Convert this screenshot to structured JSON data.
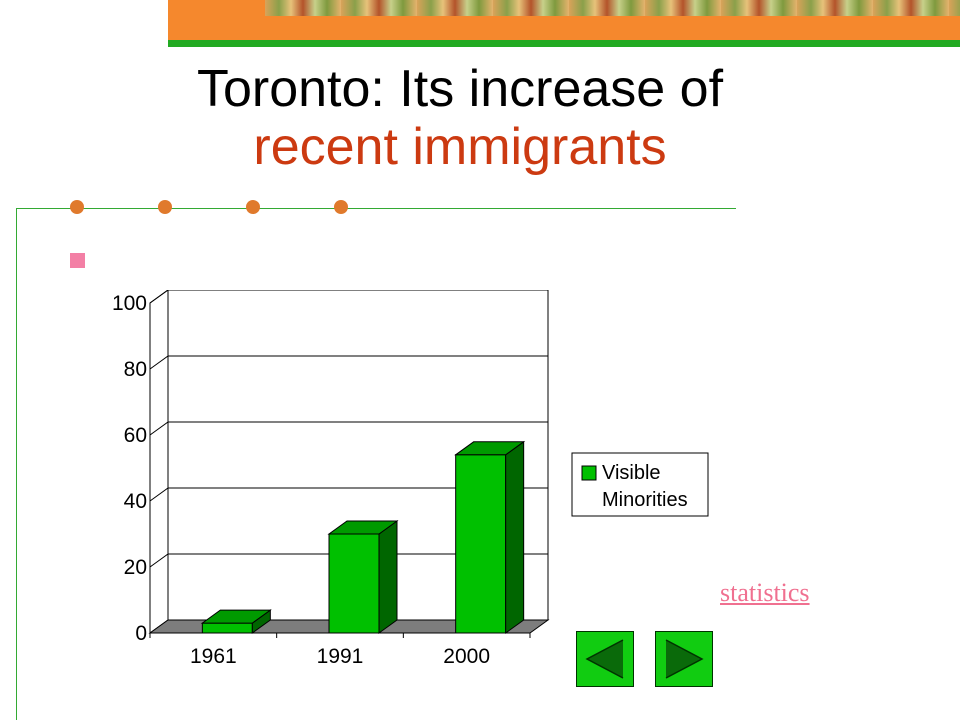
{
  "slide": {
    "title_line1": "Toronto: Its increase of",
    "title_line2": "recent immigrants",
    "link_text": "statistics"
  },
  "colors": {
    "banner": "#f5882d",
    "accent_green": "#22aa22",
    "title_highlight": "#cc3a11",
    "bullet": "#f37fa5",
    "bar_front": "#00c000",
    "link": "#f07090"
  },
  "nav": {
    "prev_icon": "triangle-left-icon",
    "next_icon": "triangle-right-icon"
  },
  "chart_data": {
    "type": "bar",
    "categories": [
      "1961",
      "1991",
      "2000"
    ],
    "series": [
      {
        "name": "Visible Minorities",
        "values": [
          3,
          30,
          54
        ]
      }
    ],
    "ylim": [
      0,
      100
    ],
    "yticks": [
      0,
      20,
      40,
      60,
      80,
      100
    ],
    "grid": true,
    "three_d": true,
    "legend_position": "right"
  }
}
